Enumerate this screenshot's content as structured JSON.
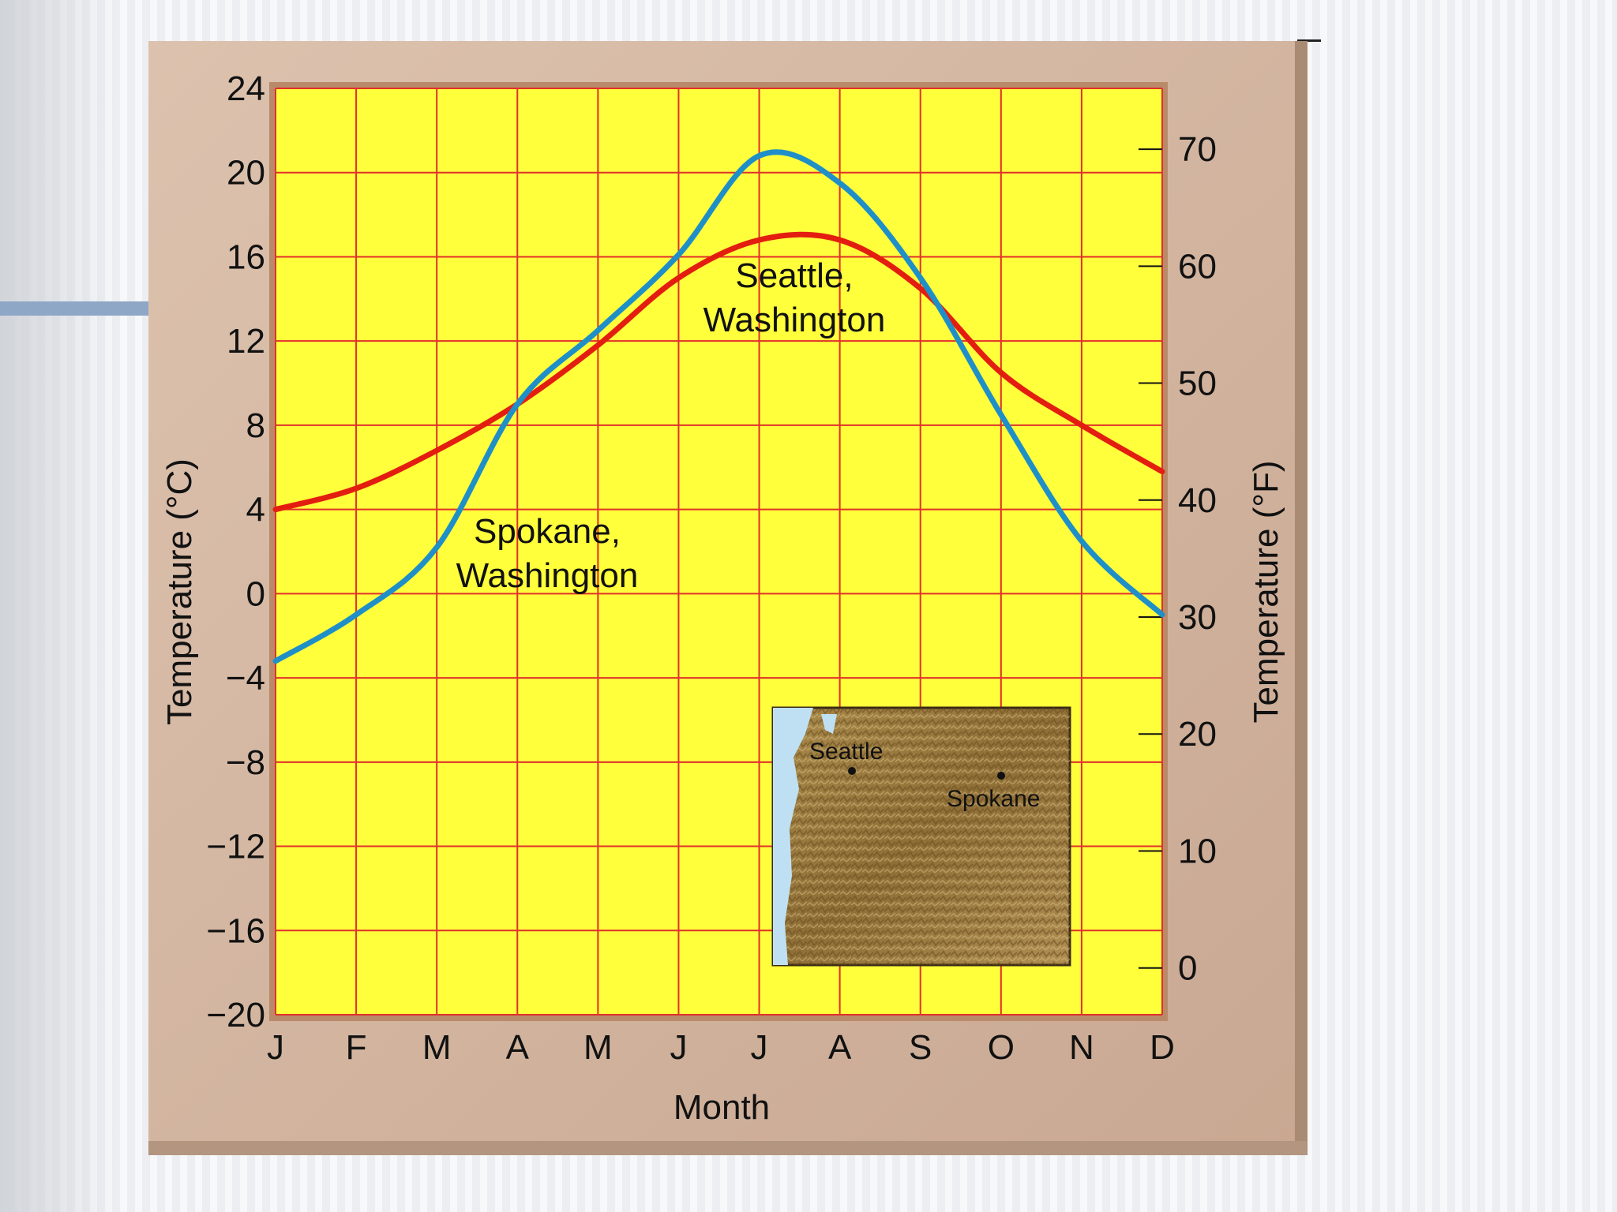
{
  "slide": {
    "accent_color": "#8ea7c6"
  },
  "chart_data": {
    "type": "line",
    "title": "",
    "xlabel": "Month",
    "ylabel": "Temperature (°C)",
    "y2label": "Temperature (°F)",
    "categories": [
      "J",
      "F",
      "M",
      "A",
      "M",
      "J",
      "J",
      "A",
      "S",
      "O",
      "N",
      "D"
    ],
    "ylim": [
      -20,
      24
    ],
    "yticks": [
      "24",
      "20",
      "16",
      "12",
      "8",
      "4",
      "0",
      "−4",
      "−8",
      "−12",
      "−16",
      "−20"
    ],
    "y2ticks": [
      "70",
      "60",
      "50",
      "40",
      "30",
      "20",
      "10",
      "0"
    ],
    "y2_values_f": [
      70,
      60,
      50,
      40,
      30,
      20,
      10,
      0
    ],
    "grid": true,
    "colors": {
      "background": "#ffff3c",
      "grid": "#e0302a",
      "frame": "#c9a78e",
      "seattle": "#e31e10",
      "spokane": "#1f8fc8"
    },
    "series": [
      {
        "name_line1": "Seattle,",
        "name_line2": "Washington",
        "color": "#e31e10",
        "values": [
          4,
          5,
          6.8,
          9,
          11.8,
          15,
          16.8,
          16.8,
          14.5,
          10.5,
          8,
          5.8
        ]
      },
      {
        "name_line1": "Spokane,",
        "name_line2": "Washington",
        "color": "#1f8fc8",
        "values": [
          -3.2,
          -1,
          2.2,
          9,
          12.5,
          16.1,
          20.8,
          19.5,
          15,
          8.5,
          2.5,
          -1
        ]
      }
    ],
    "inset_map": {
      "labels": [
        "Seattle",
        "Spokane"
      ]
    }
  }
}
